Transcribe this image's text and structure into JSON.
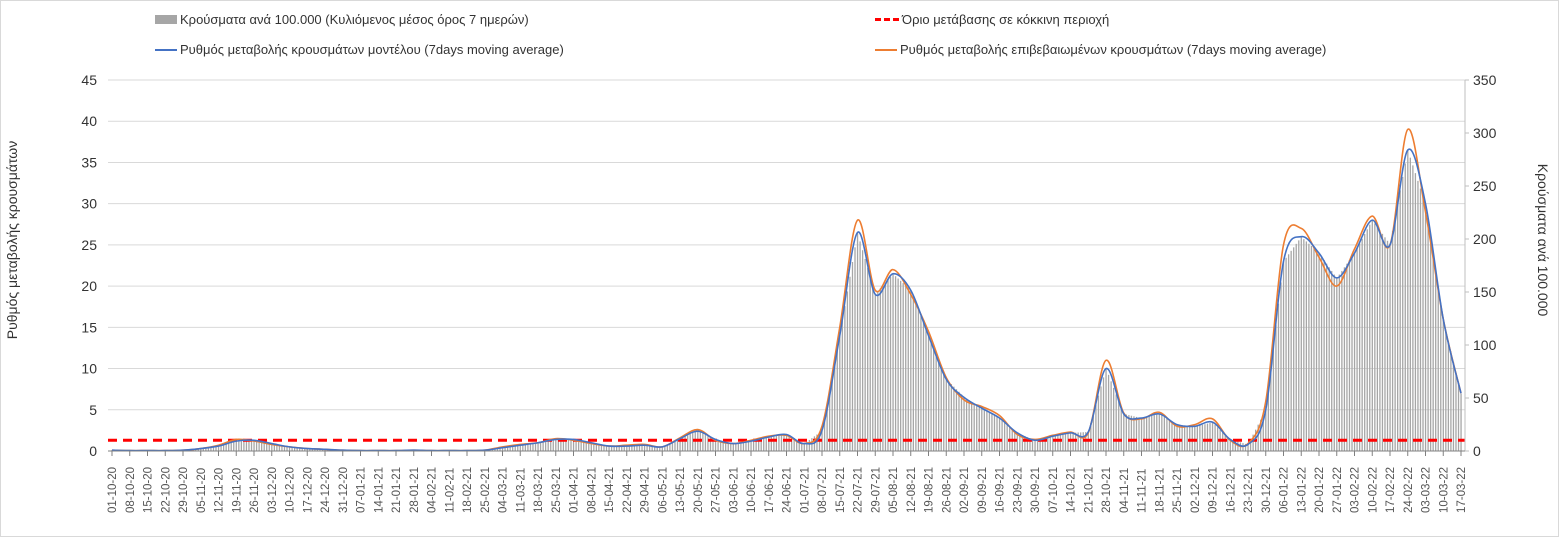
{
  "chart_data": {
    "type": "bar+line",
    "legend": [
      {
        "label": "Κρούσματα ανά 100.000 (Κυλιόμενος μέσος όρος 7 ημερών)",
        "color": "#a6a6a6",
        "kind": "bar"
      },
      {
        "label": "Όριο μετάβασης σε κόκκινη περιοχή",
        "color": "#ff0000",
        "kind": "dashed"
      },
      {
        "label": "Ρυθμός μεταβολής κρουσμάτων μοντέλου (7days moving average)",
        "color": "#4472c4",
        "kind": "line"
      },
      {
        "label": "Ρυθμός μεταβολής επιβεβαιωμένων κρουσμάτων (7days moving average)",
        "color": "#ed7d31",
        "kind": "line"
      }
    ],
    "ylabel_left": "Ρυθμός μεταβολής κρουσμάτων",
    "ylabel_right": "Κρούσματα ανά 100.000",
    "ylim_left": [
      0,
      45
    ],
    "ylim_right": [
      0,
      350
    ],
    "yticks_left": [
      "0",
      "5",
      "10",
      "15",
      "20",
      "25",
      "30",
      "35",
      "40",
      "45"
    ],
    "yticks_right": [
      "0",
      "50",
      "100",
      "150",
      "200",
      "250",
      "300",
      "350"
    ],
    "red_threshold_left": 1.3,
    "grid": "horizontal",
    "categories": [
      "01-10-20",
      "08-10-20",
      "15-10-20",
      "22-10-20",
      "29-10-20",
      "05-11-20",
      "12-11-20",
      "19-11-20",
      "26-11-20",
      "03-12-20",
      "10-12-20",
      "17-12-20",
      "24-12-20",
      "31-12-20",
      "07-01-21",
      "14-01-21",
      "21-01-21",
      "28-01-21",
      "04-02-21",
      "11-02-21",
      "18-02-21",
      "25-02-21",
      "04-03-21",
      "11-03-21",
      "18-03-21",
      "25-03-21",
      "01-04-21",
      "08-04-21",
      "15-04-21",
      "22-04-21",
      "29-04-21",
      "06-05-21",
      "13-05-21",
      "20-05-21",
      "27-05-21",
      "03-06-21",
      "10-06-21",
      "17-06-21",
      "24-06-21",
      "01-07-21",
      "08-07-21",
      "15-07-21",
      "22-07-21",
      "29-07-21",
      "05-08-21",
      "12-08-21",
      "19-08-21",
      "26-08-21",
      "02-09-21",
      "09-09-21",
      "16-09-21",
      "23-09-21",
      "30-09-21",
      "07-10-21",
      "14-10-21",
      "21-10-21",
      "28-10-21",
      "04-11-21",
      "11-11-21",
      "18-11-21",
      "25-11-21",
      "02-12-21",
      "09-12-21",
      "16-12-21",
      "23-12-21",
      "30-12-21",
      "06-01-22",
      "13-01-22",
      "20-01-22",
      "27-01-22",
      "03-02-22",
      "10-02-22",
      "17-02-22",
      "24-02-22",
      "03-03-22",
      "10-03-22",
      "17-03-22"
    ],
    "series": [
      {
        "name": "model",
        "axis": "left",
        "values": [
          0.1,
          0.05,
          0.05,
          0.05,
          0.1,
          0.3,
          0.6,
          1.2,
          1.3,
          0.9,
          0.5,
          0.3,
          0.2,
          0.1,
          0.05,
          0.05,
          0.05,
          0.1,
          0.05,
          0.05,
          0.05,
          0.1,
          0.4,
          0.7,
          1.0,
          1.4,
          1.4,
          1.0,
          0.6,
          0.6,
          0.7,
          0.5,
          1.5,
          2.4,
          1.4,
          0.9,
          1.2,
          1.7,
          2.0,
          0.9,
          2.5,
          14,
          26.5,
          19,
          21.5,
          19.5,
          14,
          8.7,
          6.5,
          5.2,
          4.0,
          2.2,
          1.3,
          1.8,
          2.2,
          2.3,
          10,
          4.5,
          4.0,
          4.5,
          3.2,
          3.0,
          3.5,
          1.4,
          0.8,
          5,
          23,
          26,
          24,
          21,
          24,
          28,
          25,
          36.5,
          30,
          16,
          7
        ]
      },
      {
        "name": "confirmed",
        "axis": "left",
        "values": [
          0.1,
          0.05,
          0.05,
          0.05,
          0.1,
          0.3,
          0.7,
          1.4,
          1.2,
          0.8,
          0.5,
          0.3,
          0.2,
          0.1,
          0.05,
          0.05,
          0.05,
          0.1,
          0.05,
          0.05,
          0.05,
          0.1,
          0.5,
          0.8,
          1.0,
          1.5,
          1.3,
          0.9,
          0.6,
          0.7,
          0.8,
          0.5,
          1.6,
          2.6,
          1.3,
          0.9,
          1.3,
          1.8,
          1.9,
          0.9,
          3.0,
          15,
          28,
          19.5,
          22,
          19,
          14.5,
          8.9,
          6.2,
          5.4,
          4.3,
          2.0,
          1.4,
          1.9,
          2.3,
          2.2,
          11,
          4.6,
          3.9,
          4.7,
          3.0,
          3.2,
          3.9,
          1.3,
          0.9,
          6,
          25,
          27,
          23.5,
          20,
          24.5,
          28.5,
          25,
          39,
          29,
          16,
          7
        ]
      },
      {
        "name": "cases_per_100k",
        "axis": "right",
        "values": [
          1,
          0.5,
          0.5,
          0.5,
          1,
          2,
          5,
          9,
          10,
          7,
          4,
          2,
          1.5,
          1,
          0.5,
          0.5,
          0.5,
          1,
          0.5,
          0.5,
          0.5,
          1,
          3,
          5,
          8,
          11,
          11,
          8,
          5,
          5,
          5,
          4,
          12,
          19,
          11,
          7,
          9,
          13,
          16,
          7,
          19,
          109,
          206,
          148,
          167,
          152,
          109,
          68,
          51,
          40,
          31,
          17,
          10,
          14,
          17,
          18,
          78,
          35,
          31,
          35,
          25,
          23,
          27,
          11,
          6,
          39,
          179,
          202,
          187,
          163,
          187,
          218,
          195,
          284,
          233,
          124,
          54
        ]
      }
    ]
  }
}
